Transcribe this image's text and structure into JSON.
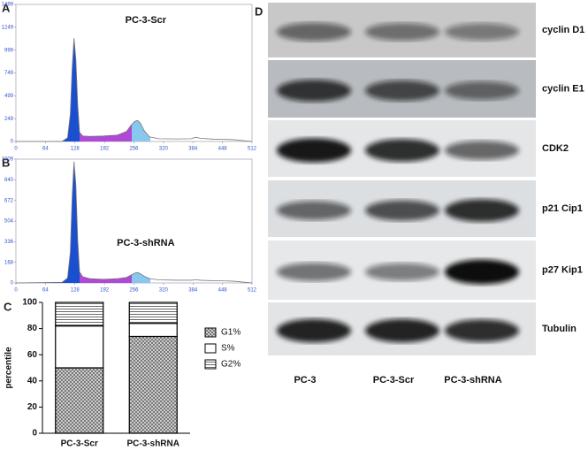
{
  "chart_data": [
    {
      "type": "area",
      "label": "A",
      "title": "PC-3-Scr",
      "x": [
        0,
        100,
        112,
        118,
        122,
        126,
        130,
        134,
        138,
        145,
        160,
        190,
        220,
        240,
        250,
        258,
        264,
        270,
        278,
        290,
        310,
        350,
        380,
        390,
        400,
        430,
        470,
        512
      ],
      "values": [
        0,
        0,
        40,
        300,
        800,
        1130,
        900,
        400,
        100,
        60,
        55,
        60,
        70,
        110,
        180,
        220,
        230,
        200,
        120,
        50,
        30,
        28,
        30,
        45,
        35,
        25,
        20,
        0
      ],
      "xlim": [
        0,
        512
      ],
      "xticks": [
        0,
        64,
        128,
        192,
        256,
        320,
        384,
        448,
        512
      ],
      "ylim": [
        0,
        1499
      ],
      "yticks": [
        0,
        249,
        499,
        749,
        999,
        1249,
        1499
      ]
    },
    {
      "type": "area",
      "label": "B",
      "title": "PC-3-shRNA",
      "x": [
        0,
        100,
        112,
        118,
        122,
        126,
        130,
        134,
        138,
        145,
        160,
        190,
        220,
        240,
        250,
        258,
        264,
        270,
        278,
        290,
        310,
        350,
        380,
        390,
        400,
        430,
        470,
        512
      ],
      "values": [
        0,
        5,
        40,
        250,
        700,
        990,
        800,
        350,
        90,
        50,
        35,
        30,
        35,
        45,
        65,
        80,
        85,
        75,
        55,
        35,
        25,
        22,
        22,
        25,
        22,
        18,
        15,
        0
      ],
      "xlim": [
        0,
        512
      ],
      "xticks": [
        0,
        64,
        128,
        192,
        256,
        320,
        384,
        448,
        512
      ],
      "ylim": [
        0,
        1009
      ],
      "yticks": [
        0,
        168,
        336,
        504,
        672,
        840,
        1009
      ]
    },
    {
      "type": "bar",
      "stacked": true,
      "label": "C",
      "y_label": "percentile",
      "categories": [
        "PC-3-Scr",
        "PC-3-shRNA"
      ],
      "series": [
        {
          "name": "G1%",
          "values": [
            50,
            74
          ]
        },
        {
          "name": "S%",
          "values": [
            32,
            10
          ]
        },
        {
          "name": "G2%",
          "values": [
            18,
            16
          ]
        }
      ],
      "ylim": [
        0,
        100
      ],
      "yticks": [
        0,
        20,
        40,
        60,
        80,
        100
      ]
    }
  ],
  "blot": {
    "label": "D",
    "rows": [
      "cyclin D1",
      "cyclin E1",
      "CDK2",
      "p21 Cip1",
      "p27 Kip1",
      "Tubulin"
    ],
    "lanes": [
      "PC-3",
      "PC-3-Scr",
      "PC-3-shRNA"
    ]
  }
}
